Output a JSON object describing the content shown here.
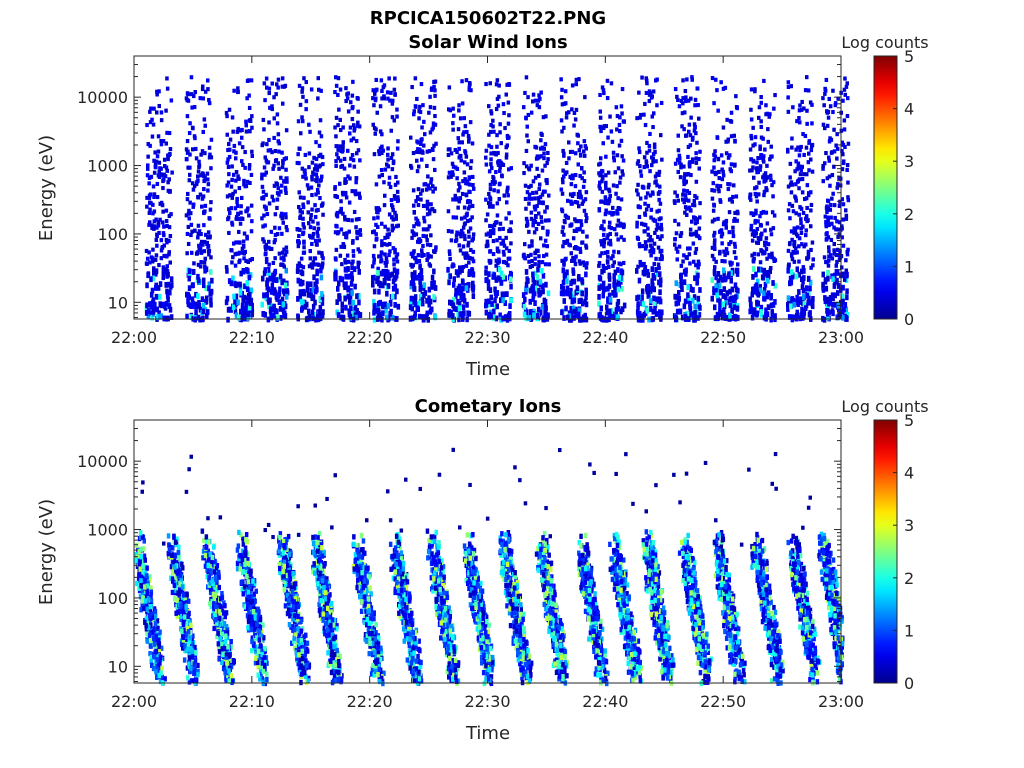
{
  "title": "RPCICA150602T22.PNG",
  "colormap": [
    "#00008f",
    "#0000ff",
    "#0080ff",
    "#00ffff",
    "#80ff80",
    "#ffff00",
    "#ff8000",
    "#ff0000",
    "#800000"
  ],
  "chart_data": [
    {
      "type": "heatmap",
      "title": "Solar Wind Ions",
      "xlabel": "Time",
      "ylabel": "Energy (eV)",
      "x_tick_labels": [
        "22:00",
        "22:10",
        "22:20",
        "22:30",
        "22:40",
        "22:50",
        "23:00"
      ],
      "x_range_minutes": [
        0,
        60
      ],
      "y_scale": "log",
      "y_range": [
        5.7,
        40000
      ],
      "y_ticks": [
        10,
        100,
        1000,
        10000
      ],
      "y_tick_labels": [
        "10",
        "100",
        "1000",
        "10000"
      ],
      "colorbar": {
        "label": "Log counts",
        "range": [
          0,
          5
        ],
        "ticks": [
          "0",
          "1",
          "2",
          "3",
          "4",
          "5"
        ]
      },
      "pattern": {
        "description_of_data": "sparse periodic bursts",
        "period_minutes": 3.2,
        "burst_start_minutes": [
          1.2,
          4.6,
          8.0,
          11.0,
          14.0,
          17.2,
          20.4,
          23.6,
          26.8,
          30.0,
          33.2,
          36.4,
          39.6,
          42.8,
          46.0,
          49.2,
          52.4,
          55.6,
          58.6
        ],
        "peak_log_counts": 2.2,
        "typical_log_counts": 0.3
      }
    },
    {
      "type": "heatmap",
      "title": "Cometary Ions",
      "xlabel": "Time",
      "ylabel": "Energy (eV)",
      "x_tick_labels": [
        "22:00",
        "22:10",
        "22:20",
        "22:30",
        "22:40",
        "22:50",
        "23:00"
      ],
      "x_range_minutes": [
        0,
        60
      ],
      "y_scale": "log",
      "y_range": [
        5.7,
        40000
      ],
      "y_ticks": [
        10,
        100,
        1000,
        10000
      ],
      "y_tick_labels": [
        "10",
        "100",
        "1000",
        "10000"
      ],
      "colorbar": {
        "label": "Log counts",
        "range": [
          0,
          5
        ],
        "ticks": [
          "0",
          "1",
          "2",
          "3",
          "4",
          "5"
        ]
      },
      "pattern": {
        "description_of_data": "diagonal bursts from ~500 eV descending to ~8 eV",
        "burst_start_minutes": [
          0.2,
          3.1,
          6.1,
          9.0,
          12.5,
          15.3,
          18.8,
          22.0,
          25.2,
          28.2,
          31.3,
          34.4,
          37.8,
          40.6,
          43.4,
          46.6,
          49.4,
          52.7,
          55.8,
          58.4
        ],
        "burst_top_eV": 550,
        "burst_bottom_eV": 7,
        "peak_log_counts": 2.9,
        "typical_log_counts": 1.3
      }
    }
  ]
}
